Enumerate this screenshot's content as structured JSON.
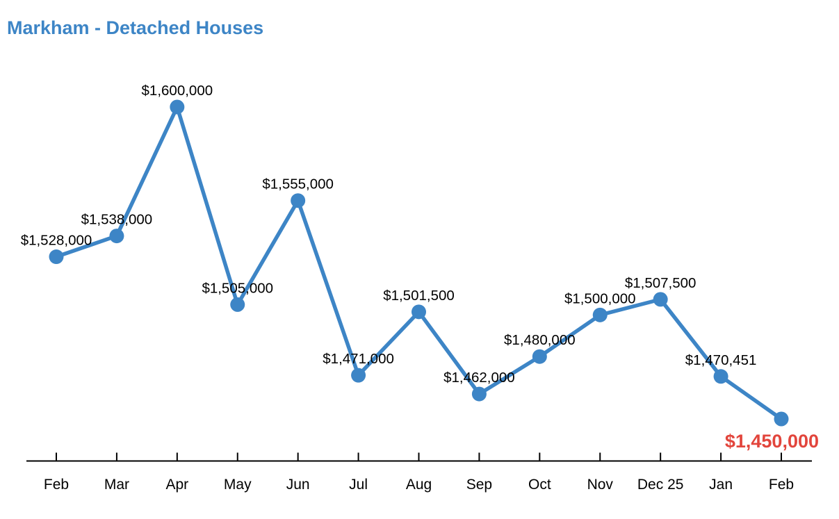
{
  "header": {
    "title": "Markham - Detached Houses",
    "title_color": "#3d85c6"
  },
  "chart_data": {
    "type": "line",
    "title": "Markham - Detached Houses",
    "categories": [
      "Feb",
      "Mar",
      "Apr",
      "May",
      "Jun",
      "Jul",
      "Aug",
      "Sep",
      "Oct",
      "Nov",
      "Dec 25",
      "Jan",
      "Feb"
    ],
    "values": [
      1528000,
      1538000,
      1600000,
      1505000,
      1555000,
      1471000,
      1501500,
      1462000,
      1480000,
      1500000,
      1507500,
      1470451,
      1450000
    ],
    "point_labels": [
      "$1,528,000",
      "$1,538,000",
      "$1,600,000",
      "$1,505,000",
      "$1,555,000",
      "$1,471,000",
      "$1,501,500",
      "$1,462,000",
      "$1,480,000",
      "$1,500,000",
      "$1,507,500",
      "$1,470,451",
      "$1,450,000"
    ],
    "highlight_index": 12,
    "series_color": "#3d85c6",
    "highlight_label_color": "#e2453c",
    "label_color": "#000000",
    "axis_color": "#000000",
    "ylim": [
      1450000,
      1600000
    ],
    "xlabel": "",
    "ylabel": "",
    "grid": false,
    "legend": "none"
  }
}
